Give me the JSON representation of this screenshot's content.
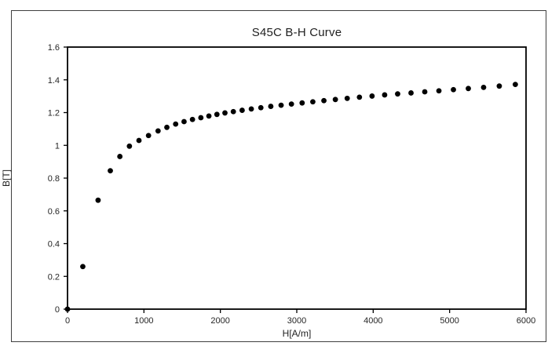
{
  "chart_data": {
    "type": "scatter",
    "title": "S45C B-H Curve",
    "xlabel": "H[A/m]",
    "ylabel": "B[T]",
    "xlim": [
      0,
      6000
    ],
    "ylim": [
      0,
      1.6
    ],
    "x_ticks": [
      0,
      1000,
      2000,
      3000,
      4000,
      5000,
      6000
    ],
    "x_tick_labels": [
      "0",
      "1000",
      "2000",
      "3000",
      "4000",
      "5000",
      "6000"
    ],
    "y_ticks": [
      0,
      0.2,
      0.4,
      0.6,
      0.8,
      1.0,
      1.2,
      1.4,
      1.6
    ],
    "y_tick_labels": [
      "0",
      "0.2",
      "0.4",
      "0.6",
      "0.8",
      "1",
      "1.2",
      "1.4",
      "1.6"
    ],
    "grid": false,
    "legend_position": "none",
    "marker_style": "filled-circle",
    "marker_color": "#000000",
    "axis_color": "#000000",
    "series": [
      {
        "name": "S45C",
        "points": [
          [
            0,
            0
          ],
          [
            200,
            0.26
          ],
          [
            400,
            0.665
          ],
          [
            560,
            0.845
          ],
          [
            685,
            0.932
          ],
          [
            810,
            0.995
          ],
          [
            935,
            1.03
          ],
          [
            1060,
            1.06
          ],
          [
            1185,
            1.088
          ],
          [
            1300,
            1.11
          ],
          [
            1415,
            1.13
          ],
          [
            1525,
            1.145
          ],
          [
            1635,
            1.158
          ],
          [
            1745,
            1.169
          ],
          [
            1850,
            1.179
          ],
          [
            1955,
            1.189
          ],
          [
            2060,
            1.198
          ],
          [
            2170,
            1.206
          ],
          [
            2285,
            1.214
          ],
          [
            2405,
            1.222
          ],
          [
            2530,
            1.23
          ],
          [
            2660,
            1.238
          ],
          [
            2795,
            1.245
          ],
          [
            2930,
            1.252
          ],
          [
            3070,
            1.259
          ],
          [
            3210,
            1.266
          ],
          [
            3355,
            1.273
          ],
          [
            3505,
            1.28
          ],
          [
            3660,
            1.287
          ],
          [
            3820,
            1.294
          ],
          [
            3985,
            1.301
          ],
          [
            4150,
            1.308
          ],
          [
            4320,
            1.314
          ],
          [
            4495,
            1.32
          ],
          [
            4675,
            1.327
          ],
          [
            4860,
            1.333
          ],
          [
            5050,
            1.34
          ],
          [
            5245,
            1.347
          ],
          [
            5445,
            1.354
          ],
          [
            5650,
            1.362
          ],
          [
            5860,
            1.372
          ]
        ]
      }
    ]
  }
}
